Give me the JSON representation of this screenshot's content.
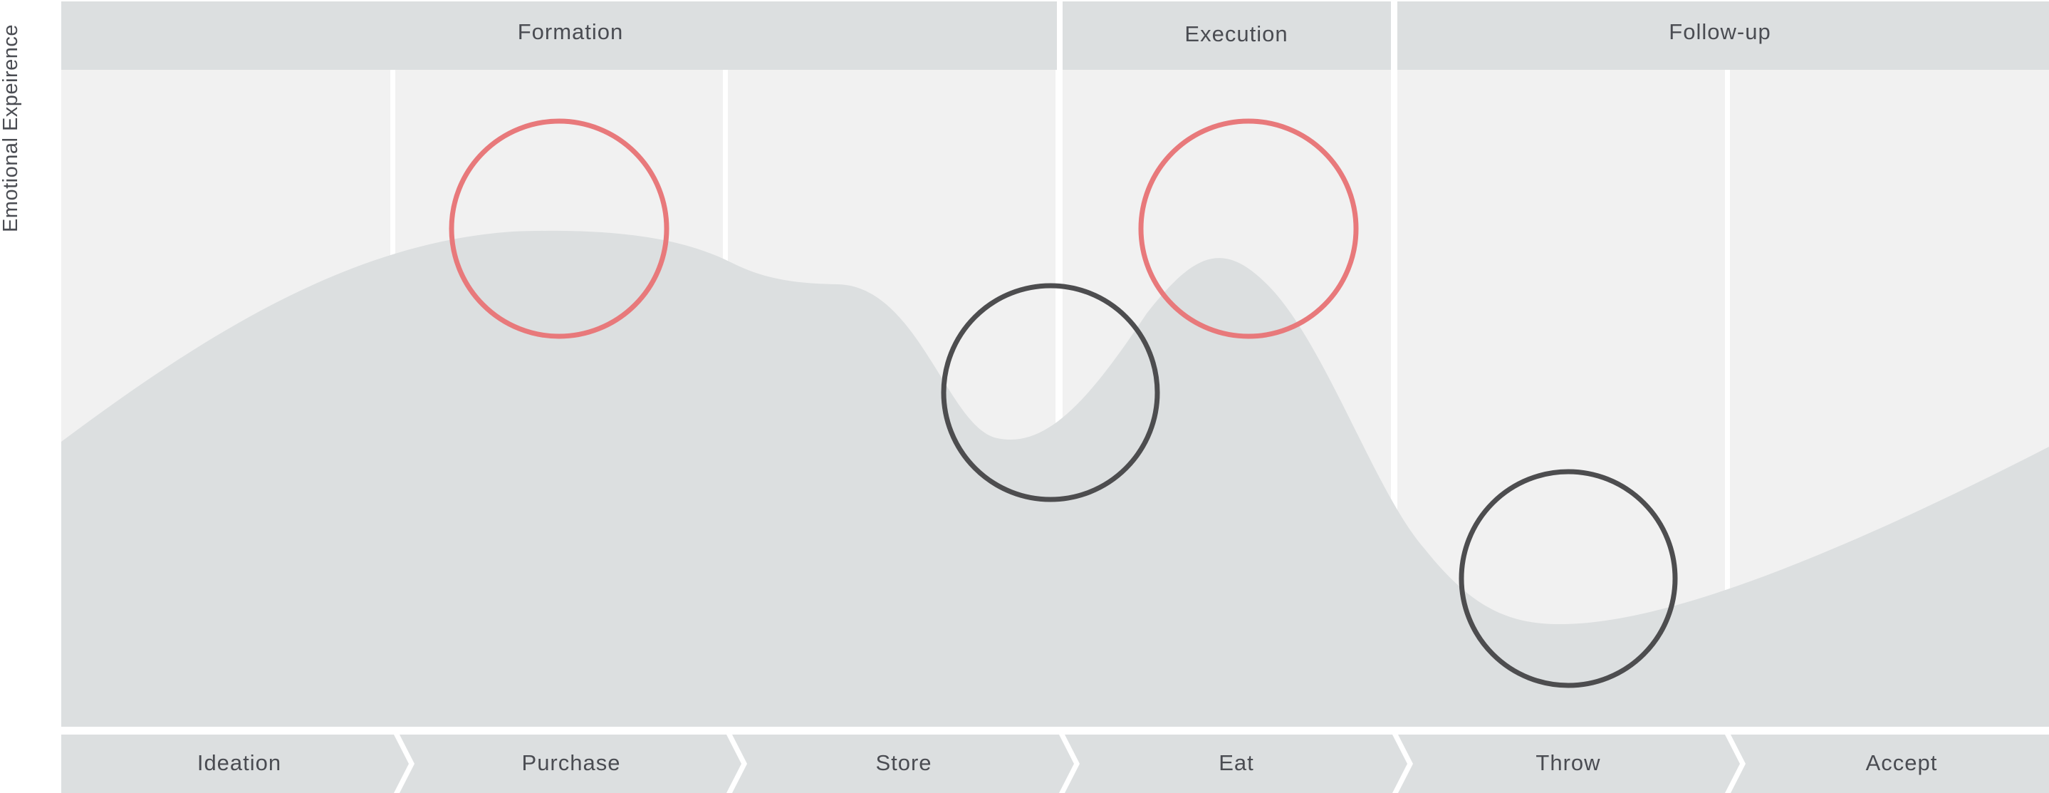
{
  "axis_label": "Emotional Expeirence",
  "phases": [
    {
      "label": "Formation"
    },
    {
      "label": "Execution"
    },
    {
      "label": "Follow-up"
    }
  ],
  "steps": [
    {
      "label": "Ideation"
    },
    {
      "label": "Purchase"
    },
    {
      "label": "Store"
    },
    {
      "label": "Eat"
    },
    {
      "label": "Throw"
    },
    {
      "label": "Accept"
    }
  ],
  "highlights": [
    {
      "kind": "positive",
      "color": "#e8797b"
    },
    {
      "kind": "positive",
      "color": "#e8797b"
    },
    {
      "kind": "negative",
      "color": "#4d4d4f"
    },
    {
      "kind": "negative",
      "color": "#4d4d4f"
    }
  ],
  "colors": {
    "header_bg": "#dcdfe0",
    "column_bg": "#f1f1f1",
    "curve_fill": "#dcdfe0",
    "divider": "#ffffff",
    "text": "#4a4c52"
  }
}
